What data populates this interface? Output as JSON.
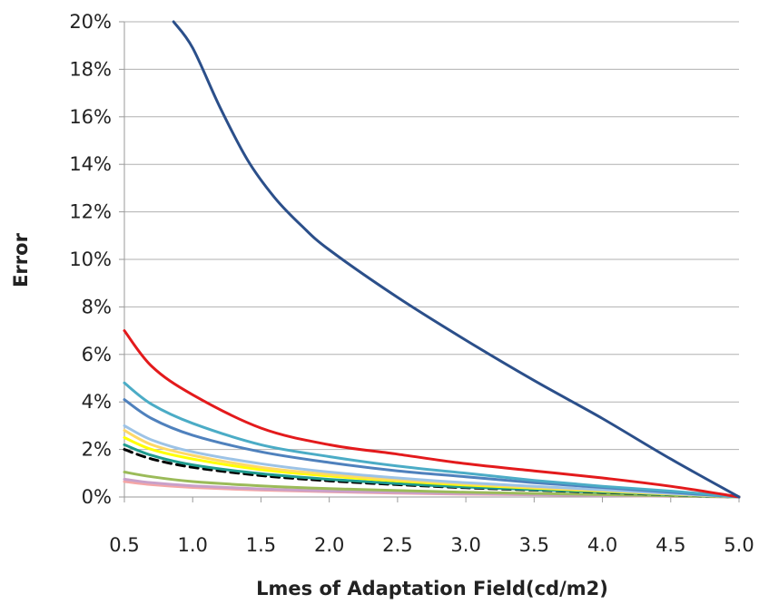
{
  "chart_data": {
    "type": "line",
    "xlabel": "Lmes of Adaptation Field(cd/m2)",
    "ylabel": "Error",
    "xlim": [
      0.5,
      5.0
    ],
    "ylim": [
      0,
      20
    ],
    "x_ticks": [
      "0.5",
      "1.0",
      "1.5",
      "2.0",
      "2.5",
      "3.0",
      "3.5",
      "4.0",
      "4.5",
      "5.0"
    ],
    "y_ticks": [
      "0%",
      "2%",
      "4%",
      "6%",
      "8%",
      "10%",
      "12%",
      "14%",
      "16%",
      "18%",
      "20%"
    ],
    "grid": "horizontal",
    "legend": "none",
    "series": [
      {
        "color": "#2b4f8a",
        "dash": false,
        "x": [
          0.86,
          1.0,
          1.2,
          1.4,
          1.6,
          1.8,
          2.0,
          2.5,
          3.0,
          3.5,
          4.0,
          4.5,
          5.0
        ],
        "y": [
          20.0,
          18.9,
          16.4,
          14.2,
          12.6,
          11.4,
          10.4,
          8.4,
          6.6,
          4.9,
          3.3,
          1.6,
          0.0
        ]
      },
      {
        "color": "#e31a1c",
        "dash": false,
        "x": [
          0.5,
          0.7,
          1.0,
          1.5,
          2.0,
          2.5,
          3.0,
          3.5,
          4.0,
          4.5,
          5.0
        ],
        "y": [
          7.0,
          5.5,
          4.3,
          2.9,
          2.2,
          1.8,
          1.4,
          1.1,
          0.8,
          0.45,
          0.0
        ]
      },
      {
        "color": "#4bacc6",
        "dash": false,
        "x": [
          0.5,
          0.7,
          1.0,
          1.5,
          2.0,
          2.5,
          3.0,
          3.5,
          4.0,
          4.5,
          5.0
        ],
        "y": [
          4.8,
          3.9,
          3.1,
          2.2,
          1.7,
          1.3,
          1.0,
          0.7,
          0.45,
          0.25,
          0.0
        ]
      },
      {
        "color": "#4f81bd",
        "dash": false,
        "x": [
          0.5,
          0.7,
          1.0,
          1.5,
          2.0,
          2.5,
          3.0,
          3.5,
          4.0,
          4.5,
          5.0
        ],
        "y": [
          4.1,
          3.3,
          2.6,
          1.9,
          1.45,
          1.1,
          0.85,
          0.6,
          0.4,
          0.2,
          0.0
        ]
      },
      {
        "color": "#9dc3e6",
        "dash": false,
        "x": [
          0.5,
          0.7,
          1.0,
          1.5,
          2.0,
          2.5,
          3.0,
          3.5,
          4.0,
          4.5,
          5.0
        ],
        "y": [
          3.0,
          2.4,
          1.9,
          1.4,
          1.05,
          0.8,
          0.6,
          0.45,
          0.3,
          0.15,
          0.0
        ]
      },
      {
        "color": "#ffd966",
        "dash": false,
        "x": [
          0.5,
          0.7,
          1.0,
          1.5,
          2.0,
          2.5,
          3.0,
          3.5,
          4.0,
          4.5,
          5.0
        ],
        "y": [
          2.8,
          2.2,
          1.75,
          1.25,
          0.95,
          0.72,
          0.55,
          0.4,
          0.27,
          0.13,
          0.0
        ]
      },
      {
        "color": "#ffff00",
        "dash": false,
        "x": [
          0.5,
          0.7,
          1.0,
          1.5,
          2.0,
          2.5,
          3.0,
          3.5,
          4.0,
          4.5,
          5.0
        ],
        "y": [
          2.5,
          2.0,
          1.6,
          1.15,
          0.88,
          0.67,
          0.5,
          0.37,
          0.25,
          0.12,
          0.0
        ]
      },
      {
        "color": "#1f9b8e",
        "dash": false,
        "x": [
          0.5,
          0.7,
          1.0,
          1.5,
          2.0,
          2.5,
          3.0,
          3.5,
          4.0,
          4.5,
          5.0
        ],
        "y": [
          2.2,
          1.75,
          1.35,
          0.98,
          0.74,
          0.56,
          0.42,
          0.31,
          0.21,
          0.1,
          0.0
        ]
      },
      {
        "color": "#000000",
        "dash": true,
        "x": [
          0.5,
          0.7,
          1.0,
          1.5,
          2.0,
          2.5,
          3.0,
          3.5,
          4.0,
          4.5,
          5.0
        ],
        "y": [
          2.0,
          1.6,
          1.25,
          0.9,
          0.68,
          0.52,
          0.39,
          0.29,
          0.19,
          0.09,
          0.0
        ]
      },
      {
        "color": "#9bbb59",
        "dash": false,
        "x": [
          0.5,
          0.7,
          1.0,
          1.5,
          2.0,
          2.5,
          3.0,
          3.5,
          4.0,
          4.5,
          5.0
        ],
        "y": [
          1.05,
          0.85,
          0.65,
          0.47,
          0.35,
          0.27,
          0.2,
          0.15,
          0.1,
          0.05,
          0.0
        ]
      },
      {
        "color": "#c9a0c9",
        "dash": false,
        "x": [
          0.5,
          0.7,
          1.0,
          1.5,
          2.0,
          2.5,
          3.0,
          3.5,
          4.0,
          4.5,
          5.0
        ],
        "y": [
          0.75,
          0.6,
          0.47,
          0.34,
          0.25,
          0.19,
          0.14,
          0.1,
          0.07,
          0.035,
          0.0
        ]
      },
      {
        "color": "#f4a6a6",
        "dash": false,
        "x": [
          0.5,
          0.7,
          1.0,
          1.5,
          2.0,
          2.5,
          3.0,
          3.5,
          4.0,
          4.5,
          5.0
        ],
        "y": [
          0.65,
          0.52,
          0.4,
          0.29,
          0.22,
          0.16,
          0.12,
          0.09,
          0.06,
          0.03,
          0.0
        ]
      }
    ]
  }
}
